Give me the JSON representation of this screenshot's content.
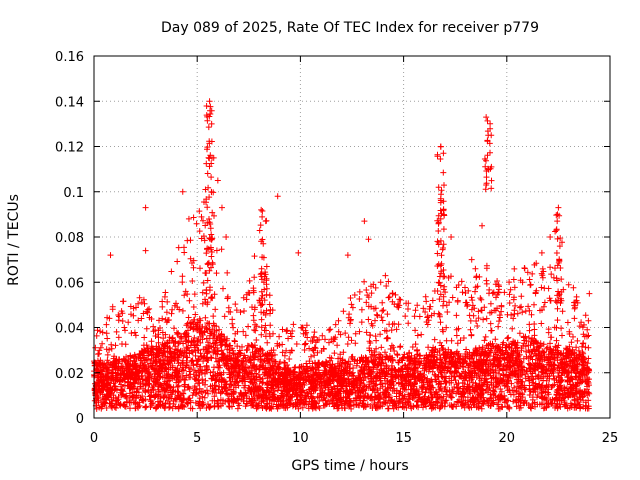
{
  "chart_data": {
    "type": "scatter",
    "title": "Day 089 of 2025, Rate Of TEC Index for receiver p779",
    "xlabel": "GPS time / hours",
    "ylabel": "ROTI / TECUs",
    "xlim": [
      0,
      25
    ],
    "ylim": [
      0,
      0.16
    ],
    "x_ticks": [
      0,
      5,
      10,
      15,
      20,
      25
    ],
    "y_ticks": [
      0,
      0.02,
      0.04,
      0.06,
      0.08,
      0.1,
      0.12,
      0.14,
      0.16
    ],
    "x_tick_labels": [
      "0",
      "5",
      "10",
      "15",
      "20",
      "25"
    ],
    "y_tick_labels": [
      "0",
      "0.02",
      "0.04",
      "0.06",
      "0.08",
      "0.1",
      "0.12",
      "0.14",
      "0.16"
    ],
    "grid": true,
    "marker": "+",
    "marker_color": "#ff0000",
    "data_time_range": [
      0,
      24
    ],
    "envelope": {
      "hours": [
        0,
        0.5,
        1,
        1.5,
        2,
        2.5,
        3,
        3.5,
        4,
        4.5,
        5,
        5.5,
        6,
        6.5,
        7,
        7.5,
        8,
        8.5,
        9,
        9.5,
        10,
        10.5,
        11,
        11.5,
        12,
        12.5,
        13,
        13.5,
        14,
        14.5,
        15,
        15.5,
        16,
        16.5,
        17,
        17.5,
        18,
        18.5,
        19,
        19.5,
        20,
        20.5,
        21,
        21.5,
        22,
        22.5,
        23,
        23.5,
        24
      ],
      "base": [
        0.018,
        0.015,
        0.016,
        0.017,
        0.018,
        0.02,
        0.02,
        0.022,
        0.025,
        0.028,
        0.03,
        0.03,
        0.027,
        0.022,
        0.02,
        0.022,
        0.021,
        0.018,
        0.014,
        0.013,
        0.014,
        0.016,
        0.016,
        0.015,
        0.015,
        0.016,
        0.017,
        0.018,
        0.018,
        0.018,
        0.018,
        0.017,
        0.018,
        0.02,
        0.02,
        0.019,
        0.018,
        0.02,
        0.022,
        0.022,
        0.022,
        0.023,
        0.024,
        0.022,
        0.021,
        0.02,
        0.02,
        0.019,
        0.018
      ],
      "upper": [
        0.035,
        0.045,
        0.05,
        0.05,
        0.055,
        0.05,
        0.045,
        0.055,
        0.07,
        0.08,
        0.09,
        0.1,
        0.085,
        0.06,
        0.05,
        0.06,
        0.075,
        0.055,
        0.04,
        0.04,
        0.045,
        0.04,
        0.035,
        0.04,
        0.045,
        0.055,
        0.06,
        0.06,
        0.065,
        0.055,
        0.055,
        0.05,
        0.05,
        0.06,
        0.065,
        0.06,
        0.06,
        0.065,
        0.065,
        0.06,
        0.06,
        0.065,
        0.065,
        0.07,
        0.07,
        0.065,
        0.06,
        0.05,
        0.045
      ]
    },
    "spikes": [
      {
        "hour": 0.8,
        "value": 0.072
      },
      {
        "hour": 2.5,
        "value": 0.093
      },
      {
        "hour": 2.5,
        "value": 0.074
      },
      {
        "hour": 4.3,
        "value": 0.1
      },
      {
        "hour": 4.6,
        "value": 0.088
      },
      {
        "hour": 5.4,
        "value": 0.101
      },
      {
        "hour": 5.6,
        "value": 0.14
      },
      {
        "hour": 5.7,
        "value": 0.13
      },
      {
        "hour": 5.8,
        "value": 0.115
      },
      {
        "hour": 6.0,
        "value": 0.105
      },
      {
        "hour": 6.2,
        "value": 0.093
      },
      {
        "hour": 6.4,
        "value": 0.08
      },
      {
        "hour": 8.1,
        "value": 0.092
      },
      {
        "hour": 8.2,
        "value": 0.077
      },
      {
        "hour": 8.9,
        "value": 0.098
      },
      {
        "hour": 9.9,
        "value": 0.073
      },
      {
        "hour": 12.3,
        "value": 0.072
      },
      {
        "hour": 13.1,
        "value": 0.087
      },
      {
        "hour": 13.3,
        "value": 0.079
      },
      {
        "hour": 16.8,
        "value": 0.12
      },
      {
        "hour": 16.7,
        "value": 0.102
      },
      {
        "hour": 16.8,
        "value": 0.088
      },
      {
        "hour": 17.3,
        "value": 0.08
      },
      {
        "hour": 18.3,
        "value": 0.07
      },
      {
        "hour": 18.8,
        "value": 0.085
      },
      {
        "hour": 19.0,
        "value": 0.133
      },
      {
        "hour": 19.1,
        "value": 0.125
      },
      {
        "hour": 19.1,
        "value": 0.11
      },
      {
        "hour": 19.0,
        "value": 0.103
      },
      {
        "hour": 21.7,
        "value": 0.073
      },
      {
        "hour": 22.1,
        "value": 0.08
      },
      {
        "hour": 22.5,
        "value": 0.093
      },
      {
        "hour": 22.4,
        "value": 0.083
      },
      {
        "hour": 24.0,
        "value": 0.055
      }
    ],
    "spike_clusters": [
      {
        "hour": 5.6,
        "from": 0.05,
        "to": 0.14
      },
      {
        "hour": 19.1,
        "from": 0.1,
        "to": 0.133
      },
      {
        "hour": 16.8,
        "from": 0.05,
        "to": 0.12
      },
      {
        "hour": 8.2,
        "from": 0.045,
        "to": 0.092
      },
      {
        "hour": 22.5,
        "from": 0.05,
        "to": 0.093
      }
    ]
  }
}
